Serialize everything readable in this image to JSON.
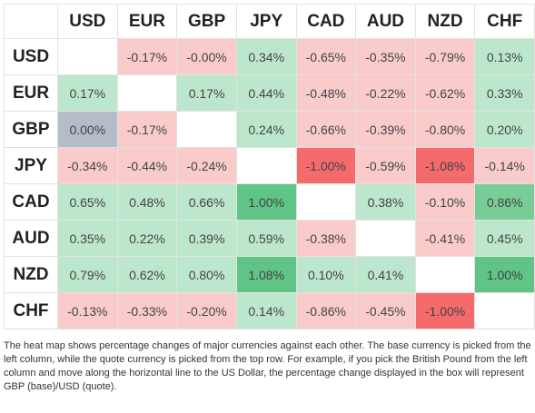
{
  "table": {
    "columns": [
      "USD",
      "EUR",
      "GBP",
      "JPY",
      "CAD",
      "AUD",
      "NZD",
      "CHF"
    ],
    "rows": [
      {
        "label": "USD",
        "cells": [
          null,
          "-0.17%",
          "-0.00%",
          "0.34%",
          "-0.65%",
          "-0.35%",
          "-0.79%",
          "0.13%"
        ]
      },
      {
        "label": "EUR",
        "cells": [
          "0.17%",
          null,
          "0.17%",
          "0.44%",
          "-0.48%",
          "-0.22%",
          "-0.62%",
          "0.33%"
        ]
      },
      {
        "label": "GBP",
        "cells": [
          "0.00%",
          "-0.17%",
          null,
          "0.24%",
          "-0.66%",
          "-0.39%",
          "-0.80%",
          "0.20%"
        ]
      },
      {
        "label": "JPY",
        "cells": [
          "-0.34%",
          "-0.44%",
          "-0.24%",
          null,
          "-1.00%",
          "-0.59%",
          "-1.08%",
          "-0.14%"
        ]
      },
      {
        "label": "CAD",
        "cells": [
          "0.65%",
          "0.48%",
          "0.66%",
          "1.00%",
          null,
          "0.38%",
          "-0.10%",
          "0.86%"
        ]
      },
      {
        "label": "AUD",
        "cells": [
          "0.35%",
          "0.22%",
          "0.39%",
          "0.59%",
          "-0.38%",
          null,
          "-0.41%",
          "0.45%"
        ]
      },
      {
        "label": "NZD",
        "cells": [
          "0.79%",
          "0.62%",
          "0.80%",
          "1.08%",
          "0.10%",
          "0.41%",
          null,
          "1.00%"
        ]
      },
      {
        "label": "CHF",
        "cells": [
          "-0.13%",
          "-0.33%",
          "-0.20%",
          "0.14%",
          "-0.86%",
          "-0.45%",
          "-1.00%",
          null
        ]
      }
    ]
  },
  "caption": "The heat map shows percentage changes of major currencies against each other. The base currency is picked from the left column, while the quote currency is picked from the top row. For example, if you pick the British Pound from the left column and move along the horizontal line to the US Dollar, the percentage change displayed in the box will represent GBP (base)/USD (quote)."
}
